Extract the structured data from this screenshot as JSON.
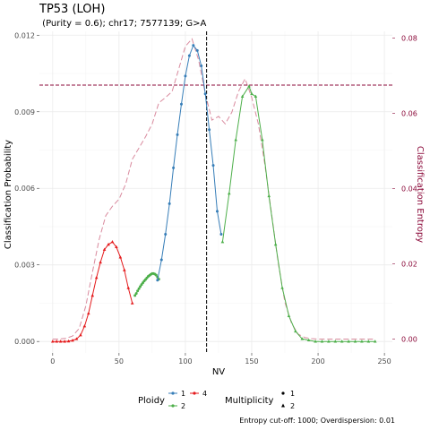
{
  "chart_data": {
    "type": "line",
    "title": "TP53 (LOH)",
    "subtitle": " (Purity = 0.6); chr17; 7577139; G>A",
    "xlabel": "NV",
    "ylabel": "Classification Probability",
    "y2label": "Classification Entropy",
    "xlim": [
      -10,
      256
    ],
    "ylim": [
      -0.00045,
      0.01215
    ],
    "y2lim": [
      -0.0037,
      0.0818
    ],
    "x_ticks": [
      0,
      50,
      100,
      150,
      200,
      250
    ],
    "y_ticks": [
      0.0,
      0.003,
      0.006,
      0.009,
      0.012
    ],
    "y_tick_labels": [
      "0.000",
      "0.003",
      "0.006",
      "0.009",
      "0.012"
    ],
    "y2_ticks": [
      0.0,
      0.02,
      0.04,
      0.06,
      0.08
    ],
    "y2_tick_labels": [
      "0.00",
      "0.02",
      "0.04",
      "0.06",
      "0.08"
    ],
    "grid": true,
    "vline_x": 116,
    "hline_y2": 0.0675,
    "colors": {
      "ploidy_1": "#377eb8",
      "ploidy_2": "#4daf4a",
      "ploidy_4": "#e41a1c",
      "entropy": "#d98a9e",
      "cutoff": "#8b0a3a",
      "vline": "#000000"
    },
    "legend": {
      "placement": "bottom",
      "ploidy_title": "Ploidy",
      "ploidy_items": [
        "1",
        "2",
        "4"
      ],
      "multiplicity_title": "Multiplicity",
      "multiplicity_items": [
        "1",
        "2"
      ]
    },
    "caption": "Entropy cut-off: 1000; Overdispersion: 0.01",
    "series": [
      {
        "name": "4",
        "ploidy": "4",
        "multiplicity": 2,
        "color": "#e41a1c",
        "x": [
          0,
          3,
          6,
          9,
          12,
          15,
          18,
          21,
          24,
          27,
          30,
          33,
          36,
          39,
          42,
          45,
          48,
          51,
          54,
          57,
          60
        ],
        "y": [
          0,
          0,
          0,
          0,
          1e-05,
          4e-05,
          0.0001,
          0.00025,
          0.0006,
          0.0011,
          0.0018,
          0.0025,
          0.0031,
          0.0036,
          0.0038,
          0.0039,
          0.0037,
          0.0033,
          0.0028,
          0.0021,
          0.0015
        ]
      },
      {
        "name": "2",
        "ploidy": "2",
        "multiplicity": 1,
        "color": "#4daf4a",
        "x": [
          62,
          63,
          64,
          65,
          66,
          67,
          68,
          69,
          70,
          71,
          72,
          73,
          74,
          75,
          76,
          77,
          78,
          79,
          80
        ],
        "y": [
          0.0018,
          0.00188,
          0.00198,
          0.00207,
          0.00215,
          0.00223,
          0.0023,
          0.00237,
          0.00243,
          0.00249,
          0.00255,
          0.00259,
          0.00263,
          0.00266,
          0.00266,
          0.00264,
          0.0026,
          0.00252,
          0.00244
        ]
      },
      {
        "name": "1",
        "ploidy": "1",
        "multiplicity": 1,
        "color": "#377eb8",
        "x": [
          79,
          82,
          85,
          88,
          91,
          94,
          97,
          100,
          103,
          106,
          109,
          112,
          115,
          118,
          121,
          124,
          127
        ],
        "y": [
          0.0024,
          0.0032,
          0.0042,
          0.0054,
          0.0068,
          0.0081,
          0.0093,
          0.0104,
          0.0112,
          0.0116,
          0.0114,
          0.0108,
          0.0097,
          0.0083,
          0.0069,
          0.0051,
          0.0042
        ]
      },
      {
        "name": "2",
        "ploidy": "2",
        "multiplicity": 2,
        "color": "#4daf4a",
        "x": [
          128,
          133,
          138,
          143,
          148,
          150,
          153,
          158,
          163,
          168,
          173,
          178,
          183,
          188,
          193,
          198,
          203,
          208,
          213,
          218,
          223,
          228,
          233,
          238,
          243
        ],
        "y": [
          0.0039,
          0.0058,
          0.0079,
          0.0096,
          0.01,
          0.0097,
          0.0096,
          0.0079,
          0.0057,
          0.0038,
          0.0021,
          0.001,
          0.0004,
          0.0001,
          5e-05,
          0,
          0,
          0,
          0,
          0,
          0,
          0,
          0,
          0,
          0
        ]
      }
    ],
    "entropy": {
      "name": "Classification Entropy",
      "x": [
        0,
        5,
        10,
        15,
        20,
        25,
        30,
        35,
        40,
        45,
        50,
        55,
        60,
        65,
        70,
        75,
        80,
        85,
        90,
        95,
        100,
        105,
        110,
        115,
        120,
        125,
        130,
        135,
        140,
        145,
        150,
        155,
        160,
        165,
        170,
        175,
        180,
        185,
        190,
        195,
        200,
        210,
        220,
        230,
        243
      ],
      "y": [
        0,
        0,
        0.0002,
        0.0008,
        0.0028,
        0.0088,
        0.0178,
        0.0265,
        0.0328,
        0.0353,
        0.0372,
        0.0412,
        0.0478,
        0.0508,
        0.0538,
        0.0572,
        0.0628,
        0.0642,
        0.0658,
        0.0718,
        0.0778,
        0.0798,
        0.0742,
        0.0652,
        0.0582,
        0.0592,
        0.0572,
        0.0603,
        0.0658,
        0.0692,
        0.0642,
        0.0572,
        0.0462,
        0.0332,
        0.0202,
        0.0098,
        0.0042,
        0.0013,
        0.0004,
        0.0001,
        0,
        0,
        0,
        0,
        0
      ]
    }
  }
}
